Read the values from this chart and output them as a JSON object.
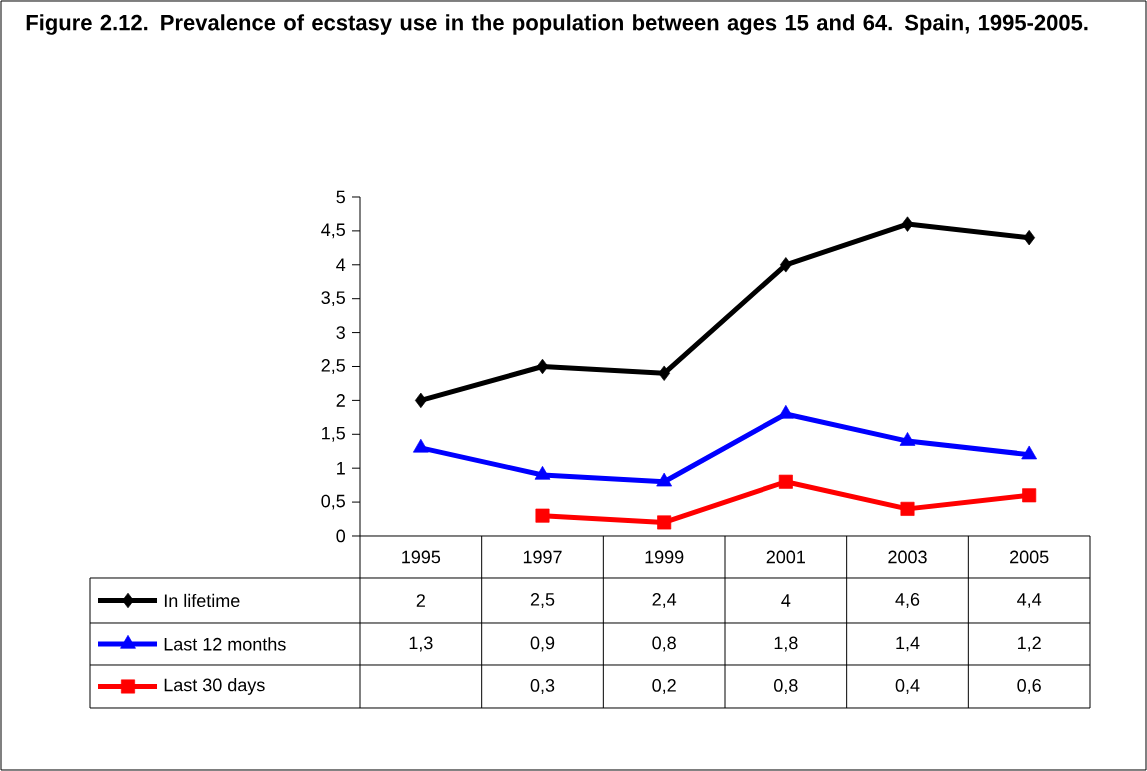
{
  "chart_data": {
    "type": "line",
    "title": "Figure 2.12. Prevalence of ecstasy use in the population between ages 15 and 64.  Spain, 1995-2005.",
    "categories": [
      "1995",
      "1997",
      "1999",
      "2001",
      "2003",
      "2005"
    ],
    "series": [
      {
        "name": "In lifetime",
        "color": "#000000",
        "marker": "diamond",
        "values": [
          2,
          2.5,
          2.4,
          4,
          4.6,
          4.4
        ],
        "value_labels": [
          "2",
          "2,5",
          "2,4",
          "4",
          "4,6",
          "4,4"
        ]
      },
      {
        "name": "Last 12 months",
        "color": "#0000ff",
        "marker": "triangle",
        "values": [
          1.3,
          0.9,
          0.8,
          1.8,
          1.4,
          1.2
        ],
        "value_labels": [
          "1,3",
          "0,9",
          "0,8",
          "1,8",
          "1,4",
          "1,2"
        ]
      },
      {
        "name": "Last 30 days",
        "color": "#ff0000",
        "marker": "square",
        "values": [
          null,
          0.3,
          0.2,
          0.8,
          0.4,
          0.6
        ],
        "value_labels": [
          null,
          "0,3",
          "0,2",
          "0,8",
          "0,4",
          "0,6"
        ]
      }
    ],
    "ylim": [
      0,
      5
    ],
    "yticks": [
      0,
      {
        "value": 0.5,
        "label": "0,5"
      },
      1,
      {
        "value": 1.5,
        "label": "1,5"
      },
      2,
      {
        "value": 2.5,
        "label": "2,5"
      },
      3,
      {
        "value": 3.5,
        "label": "3,5"
      },
      4,
      {
        "value": 4.5,
        "label": "4,5"
      },
      5
    ],
    "legend": "bottom",
    "grid": false,
    "line_style": "solid"
  }
}
